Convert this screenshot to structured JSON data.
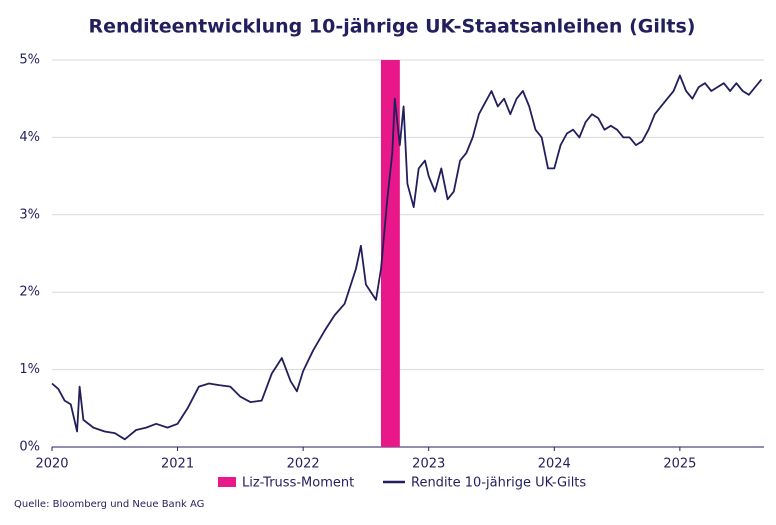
{
  "chart_data": {
    "type": "line",
    "title": "Renditeentwicklung 10-jährige UK-Staatsanleihen (Gilts)",
    "source": "Quelle: Bloomberg und Neue Bank AG",
    "xlim": [
      2020,
      2025.67
    ],
    "xticks": [
      2020,
      2021,
      2022,
      2023,
      2024,
      2025
    ],
    "ylim": [
      0,
      5
    ],
    "yticks": [
      {
        "value": 0,
        "label": "0%"
      },
      {
        "value": 1,
        "label": "1%"
      },
      {
        "value": 2,
        "label": "2%"
      },
      {
        "value": 3,
        "label": "3%"
      },
      {
        "value": 4,
        "label": "4%"
      },
      {
        "value": 5,
        "label": "5%"
      }
    ],
    "grid": true,
    "bands": [
      {
        "name": "Liz-Truss-Moment",
        "color": "#e8178a",
        "x": [
          2022.62,
          2022.77
        ]
      }
    ],
    "series": [
      {
        "name": "Rendite 10-jährige UK-Gilts",
        "color": "#231f5c",
        "x": [
          2020.0,
          2020.05,
          2020.1,
          2020.15,
          2020.2,
          2020.22,
          2020.25,
          2020.33,
          2020.42,
          2020.5,
          2020.58,
          2020.67,
          2020.75,
          2020.83,
          2020.92,
          2021.0,
          2021.08,
          2021.17,
          2021.25,
          2021.33,
          2021.42,
          2021.5,
          2021.58,
          2021.67,
          2021.75,
          2021.83,
          2021.9,
          2021.95,
          2022.0,
          2022.08,
          2022.17,
          2022.25,
          2022.33,
          2022.42,
          2022.46,
          2022.5,
          2022.58,
          2022.62,
          2022.67,
          2022.71,
          2022.73,
          2022.77,
          2022.8,
          2022.83,
          2022.88,
          2022.92,
          2022.97,
          2023.0,
          2023.05,
          2023.1,
          2023.15,
          2023.2,
          2023.25,
          2023.3,
          2023.35,
          2023.4,
          2023.45,
          2023.5,
          2023.55,
          2023.6,
          2023.65,
          2023.7,
          2023.75,
          2023.8,
          2023.85,
          2023.9,
          2023.95,
          2024.0,
          2024.05,
          2024.1,
          2024.15,
          2024.2,
          2024.25,
          2024.3,
          2024.35,
          2024.4,
          2024.45,
          2024.5,
          2024.55,
          2024.6,
          2024.65,
          2024.7,
          2024.75,
          2024.8,
          2024.85,
          2024.9,
          2024.95,
          2025.0,
          2025.05,
          2025.1,
          2025.15,
          2025.2,
          2025.25,
          2025.3,
          2025.35,
          2025.4,
          2025.45,
          2025.5,
          2025.55,
          2025.6,
          2025.65
        ],
        "values": [
          0.82,
          0.75,
          0.6,
          0.55,
          0.2,
          0.78,
          0.35,
          0.25,
          0.2,
          0.18,
          0.1,
          0.22,
          0.25,
          0.3,
          0.25,
          0.3,
          0.5,
          0.78,
          0.82,
          0.8,
          0.78,
          0.65,
          0.58,
          0.6,
          0.95,
          1.15,
          0.85,
          0.72,
          0.98,
          1.25,
          1.5,
          1.7,
          1.85,
          2.3,
          2.6,
          2.1,
          1.9,
          2.3,
          3.2,
          3.8,
          4.5,
          3.9,
          4.4,
          3.4,
          3.1,
          3.6,
          3.7,
          3.5,
          3.3,
          3.6,
          3.2,
          3.3,
          3.7,
          3.8,
          4.0,
          4.3,
          4.45,
          4.6,
          4.4,
          4.5,
          4.3,
          4.5,
          4.6,
          4.4,
          4.1,
          4.0,
          3.6,
          3.6,
          3.9,
          4.05,
          4.1,
          4.0,
          4.2,
          4.3,
          4.25,
          4.1,
          4.15,
          4.1,
          4.0,
          4.0,
          3.9,
          3.95,
          4.1,
          4.3,
          4.4,
          4.5,
          4.6,
          4.8,
          4.6,
          4.5,
          4.65,
          4.7,
          4.6,
          4.65,
          4.7,
          4.6,
          4.7,
          4.6,
          4.55,
          4.65,
          4.75
        ]
      }
    ]
  }
}
